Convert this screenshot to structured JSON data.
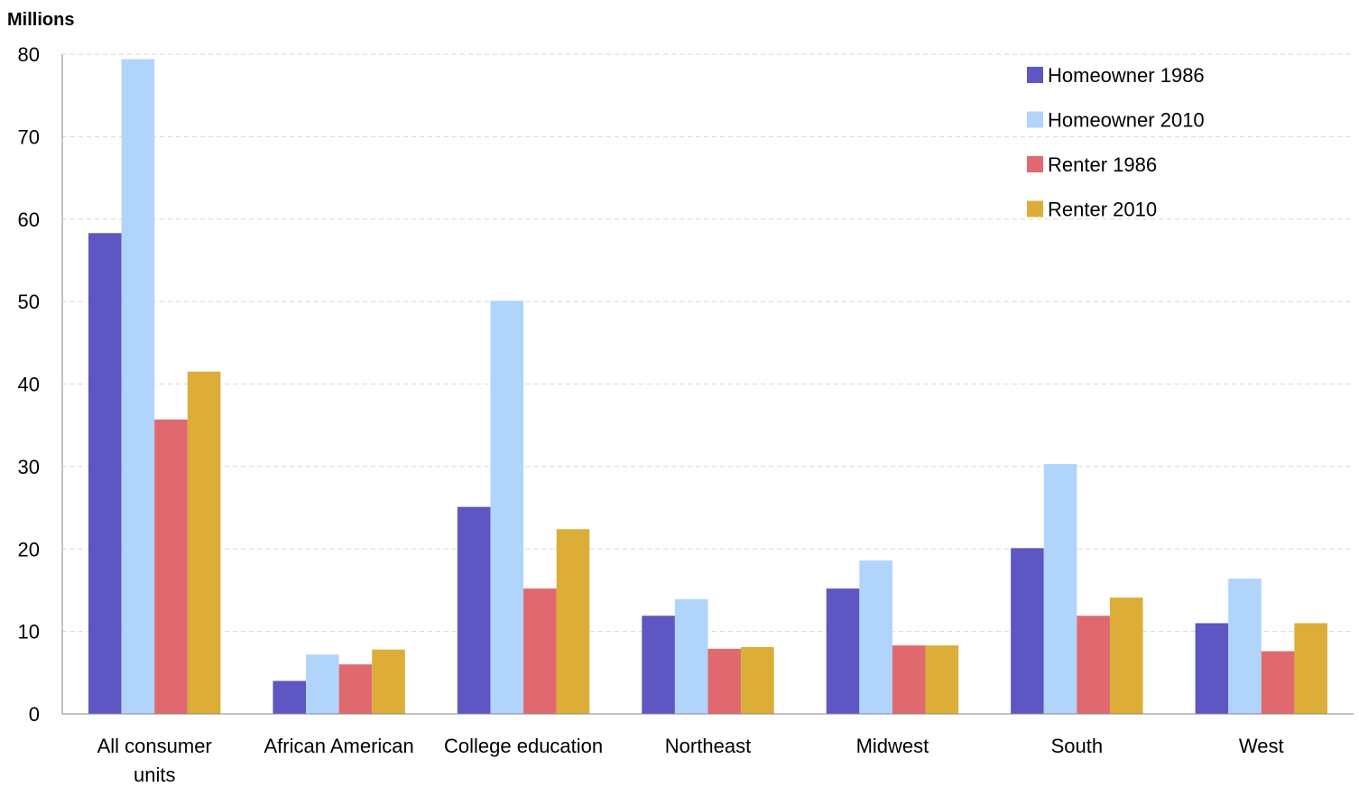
{
  "chart_data": {
    "type": "bar",
    "ylabel": "Millions",
    "xlabel": "",
    "ylim": [
      0,
      80
    ],
    "yticks": [
      0,
      10,
      20,
      30,
      40,
      50,
      60,
      70,
      80
    ],
    "grid": true,
    "legend_position": "top-right",
    "categories": [
      [
        "All consumer",
        "units"
      ],
      [
        "African American"
      ],
      [
        "College education"
      ],
      [
        "Northeast"
      ],
      [
        "Midwest"
      ],
      [
        "South"
      ],
      [
        "West"
      ]
    ],
    "series": [
      {
        "name": "Homeowner 1986",
        "color": "#5e56c2",
        "values": [
          58.3,
          4.0,
          25.1,
          11.9,
          15.2,
          20.1,
          11.0
        ]
      },
      {
        "name": "Homeowner 2010",
        "color": "#b0d4fc",
        "values": [
          79.4,
          7.2,
          50.1,
          13.9,
          18.6,
          30.3,
          16.4
        ]
      },
      {
        "name": "Renter 1986",
        "color": "#e0696f",
        "values": [
          35.7,
          6.0,
          15.2,
          7.9,
          8.3,
          11.9,
          7.6
        ]
      },
      {
        "name": "Renter 2010",
        "color": "#dcad37",
        "values": [
          41.5,
          7.8,
          22.4,
          8.1,
          8.3,
          14.1,
          11.0
        ]
      }
    ]
  }
}
